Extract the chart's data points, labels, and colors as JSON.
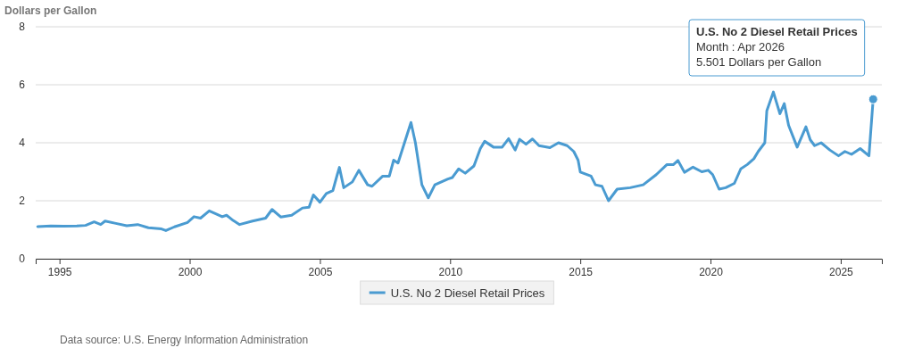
{
  "chart_data": {
    "type": "line",
    "ylabel": "Dollars per Gallon",
    "x": [
      "1994-03",
      "1994-09",
      "1995-03",
      "1995-09",
      "1996-01",
      "1996-05",
      "1996-08",
      "1996-10",
      "1997-03",
      "1997-08",
      "1998-01",
      "1998-06",
      "1998-12",
      "1999-02",
      "1999-06",
      "1999-12",
      "2000-03",
      "2000-06",
      "2000-10",
      "2001-01",
      "2001-04",
      "2001-06",
      "2001-09",
      "2001-12",
      "2002-06",
      "2002-12",
      "2003-03",
      "2003-07",
      "2003-12",
      "2004-05",
      "2004-08",
      "2004-10",
      "2005-01",
      "2005-04",
      "2005-07",
      "2005-09",
      "2005-10",
      "2005-12",
      "2006-04",
      "2006-07",
      "2006-11",
      "2007-01",
      "2007-06",
      "2007-09",
      "2007-11",
      "2008-01",
      "2008-04",
      "2008-07",
      "2008-09",
      "2008-12",
      "2009-03",
      "2009-06",
      "2009-12",
      "2010-02",
      "2010-05",
      "2010-08",
      "2010-12",
      "2011-03",
      "2011-05",
      "2011-09",
      "2012-01",
      "2012-04",
      "2012-07",
      "2012-09",
      "2012-12",
      "2013-03",
      "2013-06",
      "2013-11",
      "2014-03",
      "2014-07",
      "2014-10",
      "2014-12",
      "2015-01",
      "2015-06",
      "2015-08",
      "2015-11",
      "2016-02",
      "2016-06",
      "2016-12",
      "2017-06",
      "2017-12",
      "2018-05",
      "2018-08",
      "2018-10",
      "2019-01",
      "2019-05",
      "2019-09",
      "2019-12",
      "2020-02",
      "2020-05",
      "2020-08",
      "2020-12",
      "2021-03",
      "2021-06",
      "2021-09",
      "2021-11",
      "2022-02",
      "2022-03",
      "2022-06",
      "2022-09",
      "2022-11",
      "2023-01",
      "2023-05",
      "2023-09",
      "2023-11",
      "2024-01",
      "2024-04",
      "2024-08",
      "2024-12",
      "2025-03",
      "2025-06",
      "2025-10",
      "2026-02",
      "2026-04"
    ],
    "series": [
      {
        "name": "U.S. No 2 Diesel Retail Prices",
        "color": "#4a9bd1",
        "values": [
          1.11,
          1.13,
          1.12,
          1.13,
          1.15,
          1.27,
          1.18,
          1.3,
          1.22,
          1.14,
          1.18,
          1.07,
          1.03,
          0.97,
          1.1,
          1.25,
          1.45,
          1.4,
          1.65,
          1.55,
          1.45,
          1.5,
          1.32,
          1.18,
          1.3,
          1.4,
          1.7,
          1.44,
          1.5,
          1.75,
          1.78,
          2.2,
          1.95,
          2.25,
          2.35,
          2.9,
          3.15,
          2.45,
          2.65,
          3.05,
          2.55,
          2.5,
          2.85,
          2.85,
          3.4,
          3.3,
          4.0,
          4.7,
          4.0,
          2.55,
          2.1,
          2.55,
          2.75,
          2.8,
          3.1,
          2.95,
          3.2,
          3.8,
          4.05,
          3.85,
          3.85,
          4.14,
          3.75,
          4.12,
          3.95,
          4.13,
          3.9,
          3.83,
          4.0,
          3.9,
          3.7,
          3.4,
          2.99,
          2.85,
          2.55,
          2.5,
          2.0,
          2.4,
          2.45,
          2.55,
          2.9,
          3.25,
          3.25,
          3.39,
          2.98,
          3.16,
          3.0,
          3.05,
          2.9,
          2.4,
          2.45,
          2.6,
          3.1,
          3.25,
          3.45,
          3.7,
          4.0,
          5.1,
          5.75,
          5.0,
          5.35,
          4.6,
          3.85,
          4.55,
          4.1,
          3.9,
          4.0,
          3.75,
          3.55,
          3.7,
          3.6,
          3.8,
          3.55,
          5.501
        ]
      }
    ],
    "xlim": [
      "1994-02",
      "2026-08"
    ],
    "xticks": [
      {
        "value": "1995",
        "label": "1995"
      },
      {
        "value": "2000",
        "label": "2000"
      },
      {
        "value": "2005",
        "label": "2005"
      },
      {
        "value": "2010",
        "label": "2010"
      },
      {
        "value": "2015",
        "label": "2015"
      },
      {
        "value": "2020",
        "label": "2020"
      },
      {
        "value": "2025",
        "label": "2025"
      }
    ],
    "ylim": [
      0,
      8
    ],
    "yticks": [
      0,
      2,
      4,
      6,
      8
    ],
    "grid": "y",
    "legend": "bottom",
    "marker": "none",
    "line_style": "solid",
    "annotations": [
      {
        "text": "U.S. No 2 Diesel Retail Prices\nMonth : Apr 2026\n5.501 Dollars per Gallon",
        "x": "2026-04",
        "y": 5.501
      },
      "Data source: U.S. Energy Information Administration"
    ]
  }
}
